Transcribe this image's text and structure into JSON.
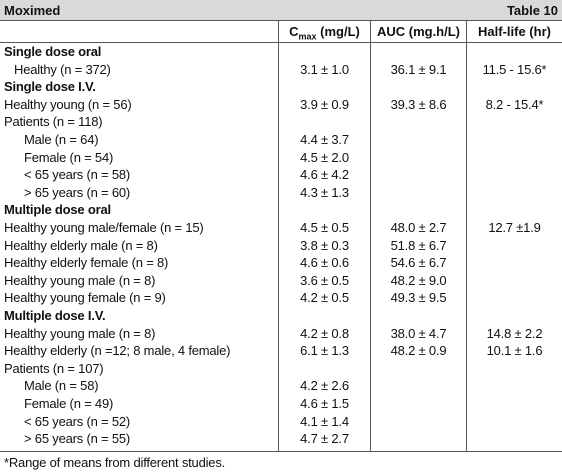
{
  "header": {
    "title": "Moximed",
    "table_label": "Table 10"
  },
  "columns": {
    "cmax": {
      "symbol": "C",
      "subscript": "max",
      "unit": "(mg/L)"
    },
    "auc": "AUC (mg.h/L)",
    "half_life": "Half-life (hr)"
  },
  "rows": [
    {
      "label": "Single dose oral"
    },
    {
      "label": "Healthy (n = 372)",
      "cmax": "3.1 ± 1.0",
      "auc": "36.1 ± 9.1",
      "half_life": "11.5 - 15.6*"
    },
    {
      "label": "Single dose I.V."
    },
    {
      "label": "Healthy young (n = 56)",
      "cmax": "3.9 ± 0.9",
      "auc": "39.3 ± 8.6",
      "half_life": "8.2 - 15.4*"
    },
    {
      "label": "Patients (n = 118)"
    },
    {
      "label": "Male (n = 64)",
      "cmax": "4.4 ± 3.7"
    },
    {
      "label": "Female (n = 54)",
      "cmax": "4.5 ± 2.0"
    },
    {
      "label": "< 65 years (n = 58)",
      "cmax": "4.6 ± 4.2"
    },
    {
      "label": "> 65 years (n = 60)",
      "cmax": "4.3 ± 1.3"
    },
    {
      "label": "Multiple dose oral"
    },
    {
      "label": "Healthy young male/female (n = 15)",
      "cmax": "4.5 ± 0.5",
      "auc": "48.0 ± 2.7",
      "half_life": "12.7 ±1.9"
    },
    {
      "label": "Healthy elderly male (n = 8)",
      "cmax": "3.8 ± 0.3",
      "auc": "51.8 ± 6.7"
    },
    {
      "label": "Healthy elderly female (n = 8)",
      "cmax": "4.6 ± 0.6",
      "auc": "54.6 ± 6.7"
    },
    {
      "label": "Healthy young male (n = 8)",
      "cmax": "3.6 ± 0.5",
      "auc": "48.2 ± 9.0"
    },
    {
      "label": "Healthy young female (n = 9)",
      "cmax": "4.2 ± 0.5",
      "auc": "49.3 ± 9.5"
    },
    {
      "label": "Multiple dose I.V."
    },
    {
      "label": "Healthy young male (n = 8)",
      "cmax": "4.2 ± 0.8",
      "auc": "38.0 ± 4.7",
      "half_life": "14.8 ± 2.2"
    },
    {
      "label": "Healthy elderly (n =12; 8 male, 4 female)",
      "cmax": "6.1 ± 1.3",
      "auc": "48.2 ± 0.9",
      "half_life": "10.1 ± 1.6"
    },
    {
      "label": "Patients (n = 107)"
    },
    {
      "label": "Male (n = 58)",
      "cmax": "4.2 ± 2.6"
    },
    {
      "label": "Female (n = 49)",
      "cmax": "4.6 ± 1.5"
    },
    {
      "label": "< 65 years (n = 52)",
      "cmax": "4.1 ± 1.4"
    },
    {
      "label": "> 65 years (n = 55)",
      "cmax": "4.7 ± 2.7"
    }
  ],
  "footnote": "*Range of means from different studies."
}
